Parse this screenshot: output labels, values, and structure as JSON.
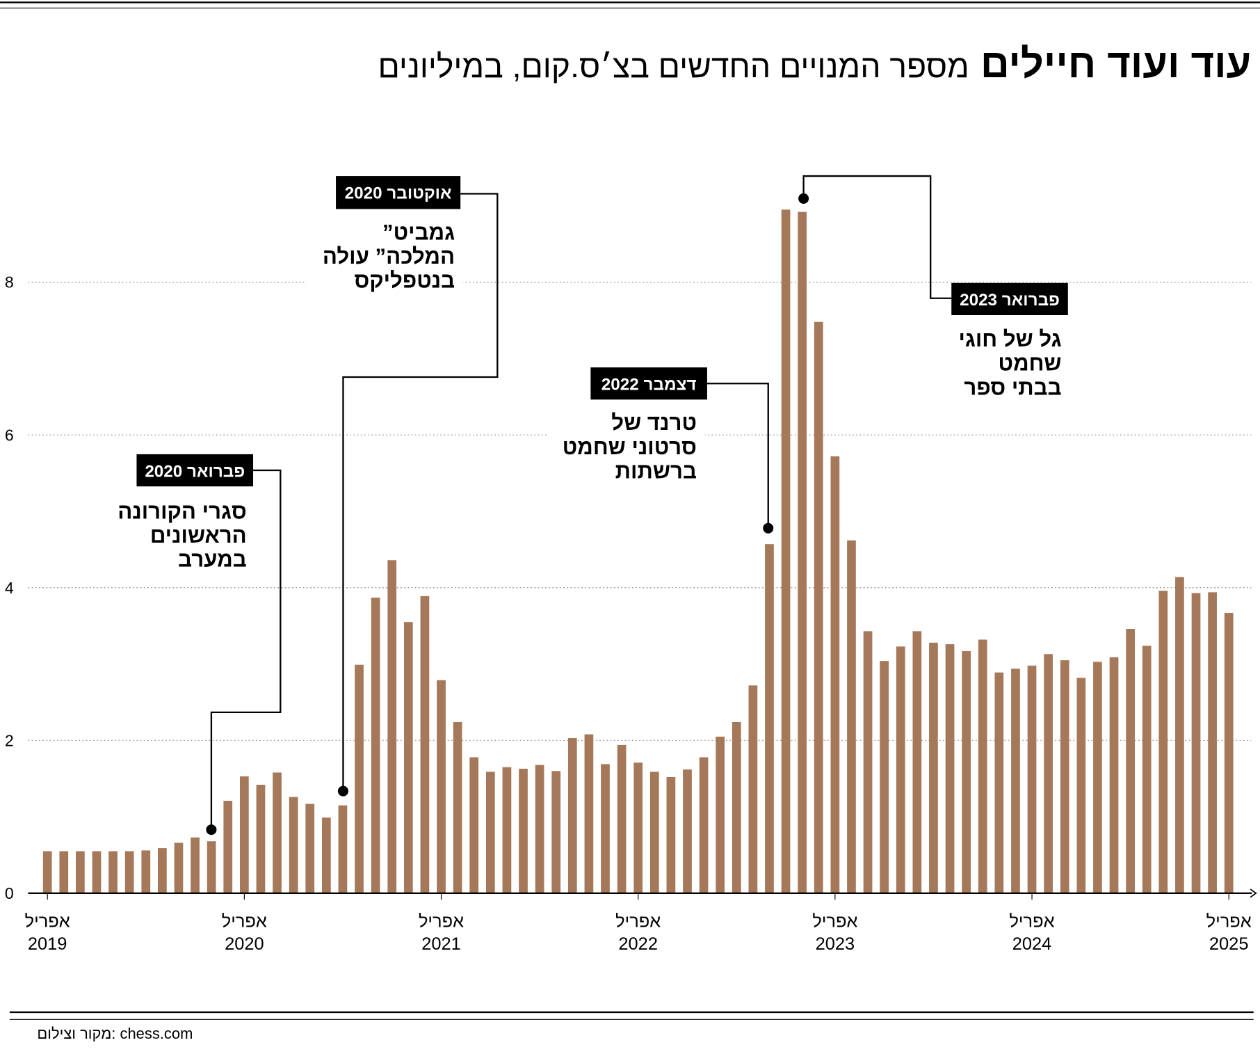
{
  "title": "עוד ועוד חיילים",
  "subtitle": "מספר המנויים החדשים בצ׳ס.קום, במיליונים",
  "source": "מקור וצילום: chess.com",
  "colors": {
    "bar": "#a6785a",
    "annotation_box": "#000000",
    "grid": "#888888"
  },
  "chart_data": {
    "type": "bar",
    "title": "עוד ועוד חיילים",
    "subtitle": "מספר המנויים החדשים בצ׳ס.קום, במיליונים",
    "ylim": [
      0,
      9.5
    ],
    "yticks": [
      "0",
      "2",
      "4",
      "6",
      "8"
    ],
    "grid": true,
    "x_start": "2019-04",
    "x_end": "2025-04",
    "xticks": [
      {
        "month": "אפריל",
        "year": "2019"
      },
      {
        "month": "אפריל",
        "year": "2020"
      },
      {
        "month": "אפריל",
        "year": "2021"
      },
      {
        "month": "אפריל",
        "year": "2022"
      },
      {
        "month": "אפריל",
        "year": "2023"
      },
      {
        "month": "אפריל",
        "year": "2024"
      },
      {
        "month": "אפריל",
        "year": "2025"
      }
    ],
    "values": [
      0.55,
      0.55,
      0.55,
      0.55,
      0.55,
      0.55,
      0.56,
      0.59,
      0.66,
      0.73,
      0.68,
      1.21,
      1.53,
      1.42,
      1.58,
      1.26,
      1.17,
      0.99,
      1.15,
      2.99,
      3.87,
      4.36,
      3.55,
      3.89,
      2.79,
      2.24,
      1.78,
      1.59,
      1.65,
      1.63,
      1.68,
      1.6,
      2.03,
      2.08,
      1.69,
      1.94,
      1.71,
      1.59,
      1.52,
      1.62,
      1.78,
      2.05,
      2.24,
      2.72,
      4.57,
      8.95,
      8.92,
      7.48,
      5.72,
      4.62,
      3.43,
      3.04,
      3.23,
      3.43,
      3.28,
      3.26,
      3.17,
      3.32,
      2.89,
      2.94,
      2.98,
      3.13,
      3.05,
      2.82,
      3.03,
      3.09,
      3.46,
      3.24,
      3.96,
      4.14,
      3.93,
      3.94,
      3.67
    ],
    "annotations": [
      {
        "date": "פברואר 2020",
        "lines": [
          "סגרי הקורונה",
          "הראשונים",
          "במערב"
        ]
      },
      {
        "date": "אוקטובר 2020",
        "lines": [
          "”גמביט",
          "המלכה” עולה",
          "בנטפליקס"
        ]
      },
      {
        "date": "דצמבר 2022",
        "lines": [
          "טרנד של",
          "סרטוני שחמט",
          "ברשתות"
        ]
      },
      {
        "date": "פברואר 2023",
        "lines": [
          "גל של חוגי",
          "שחמט",
          "בבתי ספר"
        ]
      }
    ]
  }
}
